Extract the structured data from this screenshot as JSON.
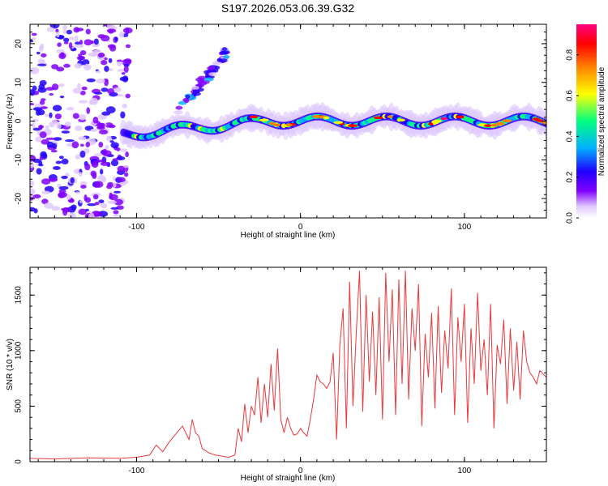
{
  "figure": {
    "title": "S197.2026.053.06.39.G32"
  },
  "chart_data": [
    {
      "type": "heatmap",
      "xlabel": "Height of straight line (km)",
      "ylabel": "Frequency (Hz)",
      "xlim": [
        -165,
        150
      ],
      "ylim": [
        -25,
        25
      ],
      "xticks": [
        -100,
        0,
        100
      ],
      "xtick_labels": [
        "-100",
        "0",
        "100"
      ],
      "yticks": [
        -20,
        -10,
        0,
        10,
        20
      ],
      "ytick_labels": [
        "-20",
        "-10",
        "0",
        "10",
        "20"
      ],
      "grid": false,
      "colorbar": {
        "label": "Normalized spectral amplitude",
        "range": [
          0,
          0.95
        ],
        "ticks": [
          0.0,
          0.2,
          0.4,
          0.6,
          0.8
        ],
        "tick_labels": [
          "0.0",
          "0.2",
          "0.4",
          "0.6",
          "0.8"
        ],
        "colormap": [
          "#ffffff",
          "#e0c8ff",
          "#8000ff",
          "#2000ff",
          "#00b0ff",
          "#00ff80",
          "#ffff00",
          "#ff8000",
          "#ff0000",
          "#ff0080"
        ]
      },
      "features": [
        {
          "name": "noise",
          "x_range": [
            -165,
            -105
          ],
          "freq_range": [
            -25,
            25
          ],
          "amplitude": 0.15
        },
        {
          "name": "signal-band",
          "x_range": [
            -108,
            150
          ],
          "center_freq": 0,
          "amplitude": 0.9
        },
        {
          "name": "streak",
          "x_range": [
            -75,
            -45
          ],
          "freq_range": [
            2,
            18
          ],
          "amplitude": 0.35
        }
      ]
    },
    {
      "type": "line",
      "xlabel": "Height of straight line (km)",
      "ylabel": "SNR (10 * v/v)",
      "xlim": [
        -165,
        150
      ],
      "ylim": [
        0,
        1750
      ],
      "xticks": [
        -100,
        0,
        100
      ],
      "xtick_labels": [
        "-100",
        "0",
        "100"
      ],
      "yticks": [
        0,
        500,
        1000,
        1500
      ],
      "ytick_labels": [
        "0",
        "500",
        "1000",
        "1500"
      ],
      "grid": false,
      "series": [
        {
          "name": "SNR",
          "color": "#e8393c",
          "x": [
            -165,
            -150,
            -130,
            -110,
            -100,
            -92,
            -88,
            -84,
            -80,
            -76,
            -72,
            -68,
            -66,
            -64,
            -62,
            -60,
            -56,
            -52,
            -48,
            -44,
            -40,
            -38,
            -36,
            -34,
            -32,
            -30,
            -28,
            -26,
            -24,
            -22,
            -20,
            -18,
            -16,
            -14,
            -12,
            -10,
            -8,
            -6,
            -4,
            -2,
            0,
            2,
            4,
            6,
            8,
            10,
            12,
            14,
            16,
            18,
            20,
            22,
            24,
            26,
            28,
            30,
            32,
            34,
            36,
            38,
            40,
            42,
            44,
            46,
            48,
            50,
            52,
            54,
            56,
            58,
            60,
            62,
            64,
            66,
            68,
            70,
            72,
            74,
            76,
            78,
            80,
            82,
            84,
            86,
            88,
            90,
            92,
            94,
            96,
            98,
            100,
            102,
            104,
            106,
            108,
            110,
            112,
            114,
            116,
            118,
            120,
            122,
            124,
            126,
            128,
            130,
            132,
            134,
            136,
            138,
            140,
            142,
            144,
            146,
            148,
            150
          ],
          "values": [
            30,
            25,
            35,
            30,
            40,
            60,
            150,
            90,
            180,
            250,
            320,
            200,
            380,
            260,
            230,
            120,
            80,
            60,
            50,
            40,
            60,
            300,
            180,
            520,
            260,
            500,
            420,
            760,
            350,
            700,
            400,
            880,
            460,
            1020,
            380,
            260,
            400,
            300,
            240,
            250,
            300,
            260,
            230,
            380,
            560,
            780,
            720,
            700,
            660,
            720,
            980,
            200,
            1050,
            1380,
            300,
            1620,
            500,
            1150,
            1720,
            450,
            1500,
            720,
            1350,
            600,
            1480,
            380,
            1700,
            900,
            1550,
            420,
            1640,
            700,
            1720,
            560,
            1380,
            1000,
            1600,
            320,
            1150,
            760,
            1340,
            480,
            1400,
            620,
            1180,
            840,
            1560,
            420,
            1300,
            900,
            1420,
            350,
            1200,
            700,
            1520,
            820,
            1100,
            600,
            1420,
            300,
            1050,
            880,
            1280,
            520,
            1200,
            640,
            1080,
            560,
            1180,
            900,
            800,
            760,
            700,
            820,
            790,
            760
          ]
        }
      ]
    }
  ]
}
